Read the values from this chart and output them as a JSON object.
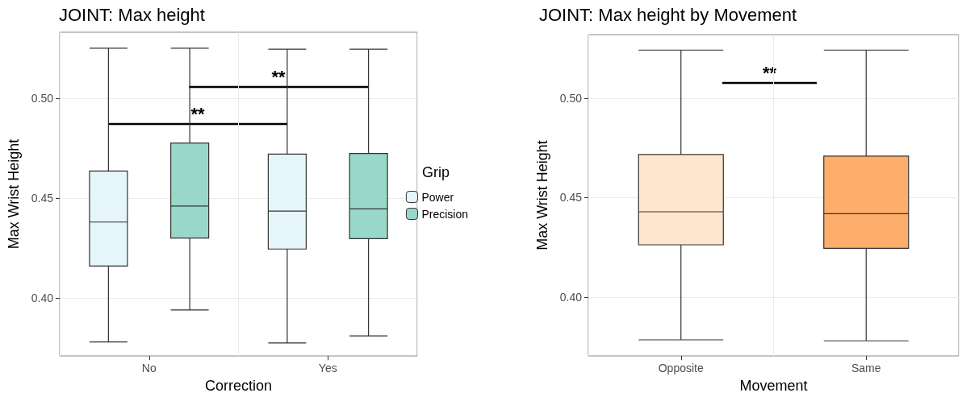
{
  "chart_data": [
    {
      "type": "box",
      "title": "JOINT: Max height",
      "xlabel": "Correction",
      "ylabel": "Max Wrist Height",
      "legend_title": "Grip",
      "categories": [
        "No",
        "Yes"
      ],
      "series": [
        {
          "name": "Power",
          "color": "#e5f5f9",
          "boxes": [
            {
              "low": 0.378,
              "q1": 0.416,
              "median": 0.438,
              "q3": 0.4635,
              "high": 0.525
            },
            {
              "low": 0.3775,
              "q1": 0.4245,
              "median": 0.4435,
              "q3": 0.472,
              "high": 0.5245
            }
          ]
        },
        {
          "name": "Precision",
          "color": "#99d8c9",
          "boxes": [
            {
              "low": 0.394,
              "q1": 0.43,
              "median": 0.446,
              "q3": 0.4775,
              "high": 0.525
            },
            {
              "low": 0.381,
              "q1": 0.4297,
              "median": 0.4446,
              "q3": 0.4723,
              "high": 0.5245
            }
          ]
        }
      ],
      "ylim": [
        0.371,
        0.533
      ],
      "yticks": [
        {
          "value": 0.4,
          "label": "0.40"
        },
        {
          "value": 0.45,
          "label": "0.45"
        },
        {
          "value": 0.5,
          "label": "0.50"
        }
      ],
      "grid": true,
      "legend": "right",
      "annotations": [
        "**",
        "**"
      ]
    },
    {
      "type": "box",
      "title": "JOINT: Max height by Movement",
      "xlabel": "Movement",
      "ylabel": "Max Wrist Height",
      "categories": [
        "Opposite",
        "Same"
      ],
      "boxes": [
        {
          "low": 0.3785,
          "q1": 0.4263,
          "median": 0.4429,
          "q3": 0.4717,
          "high": 0.5242
        },
        {
          "low": 0.378,
          "q1": 0.4245,
          "median": 0.4419,
          "q3": 0.4709,
          "high": 0.5242
        }
      ],
      "colors": [
        "#fee6ce",
        "#fdae6b"
      ],
      "ylim": [
        0.3704,
        0.532
      ],
      "yticks": [
        {
          "value": 0.4,
          "label": "0.40"
        },
        {
          "value": 0.45,
          "label": "0.45"
        },
        {
          "value": 0.5,
          "label": "0.50"
        }
      ],
      "grid": true,
      "annotations": [
        "**"
      ]
    }
  ]
}
